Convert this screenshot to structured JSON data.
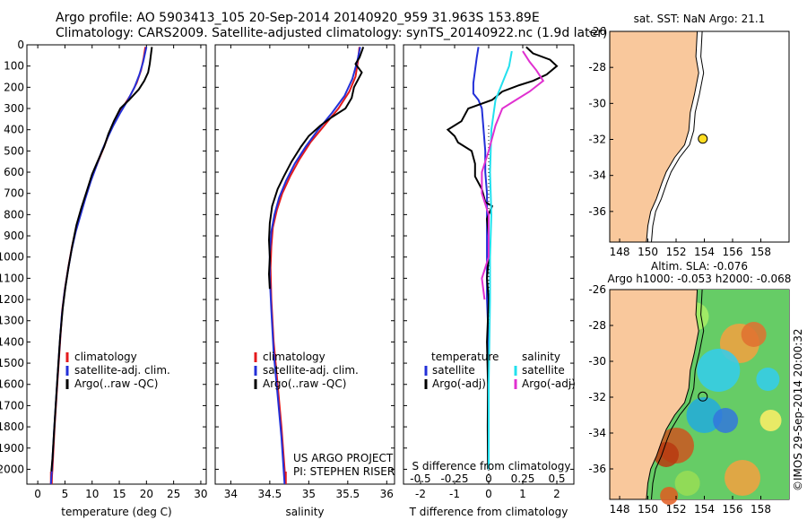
{
  "header": {
    "line1": "Argo profile: AO 5903413_105 20-Sep-2014 20140920_959 31.963S 153.89E",
    "line2": "Climatology: CARS2009. Satellite-adjusted climatology: synTS_20140922.nc (1.9d later)"
  },
  "colors": {
    "climatology": "#e41a1c",
    "satellite": "#2330d8",
    "argo": "#000000",
    "cyan": "#22e0ee",
    "magenta": "#e030d0",
    "land": "#f9c89c",
    "marker": "#ffdd22"
  },
  "chart_data": [
    {
      "type": "line",
      "xlabel": "temperature (deg C)",
      "ylabel": "",
      "xlim": [
        -2,
        31
      ],
      "ylim": [
        2070,
        0
      ],
      "xticks": [
        0,
        5,
        10,
        15,
        20,
        25,
        30
      ],
      "yticks": [
        0,
        100,
        200,
        300,
        400,
        500,
        600,
        700,
        800,
        900,
        1000,
        1100,
        1200,
        1300,
        1400,
        1500,
        1600,
        1700,
        1800,
        1900,
        2000
      ],
      "legend": [
        "climatology",
        "satellite-adj. clim.",
        "Argo(..raw -QC)"
      ],
      "series": [
        {
          "name": "climatology",
          "points": [
            [
              19.8,
              10
            ],
            [
              19.5,
              60
            ],
            [
              19.0,
              120
            ],
            [
              18.2,
              180
            ],
            [
              17.0,
              240
            ],
            [
              15.5,
              300
            ],
            [
              14.2,
              360
            ],
            [
              13.1,
              420
            ],
            [
              12.2,
              480
            ],
            [
              11.1,
              550
            ],
            [
              10.0,
              620
            ],
            [
              9.0,
              700
            ],
            [
              8.0,
              780
            ],
            [
              7.1,
              860
            ],
            [
              6.3,
              950
            ],
            [
              5.6,
              1050
            ],
            [
              5.0,
              1150
            ],
            [
              4.5,
              1250
            ],
            [
              4.1,
              1400
            ],
            [
              3.6,
              1600
            ],
            [
              3.1,
              1800
            ],
            [
              2.7,
              2000
            ],
            [
              2.5,
              2070
            ]
          ]
        },
        {
          "name": "satellite-adj. clim.",
          "points": [
            [
              20.0,
              10
            ],
            [
              19.4,
              80
            ],
            [
              18.7,
              140
            ],
            [
              17.8,
              200
            ],
            [
              16.6,
              260
            ],
            [
              15.2,
              320
            ],
            [
              13.9,
              380
            ],
            [
              12.8,
              440
            ],
            [
              11.8,
              500
            ],
            [
              10.8,
              570
            ],
            [
              9.8,
              640
            ],
            [
              8.8,
              720
            ],
            [
              7.9,
              800
            ],
            [
              7.0,
              880
            ],
            [
              6.2,
              970
            ],
            [
              5.5,
              1070
            ],
            [
              4.9,
              1170
            ],
            [
              4.4,
              1280
            ],
            [
              4.0,
              1420
            ],
            [
              3.5,
              1620
            ],
            [
              3.0,
              1820
            ],
            [
              2.6,
              2000
            ],
            [
              2.4,
              2070
            ]
          ]
        },
        {
          "name": "Argo(..raw -QC)",
          "points": [
            [
              21.0,
              10
            ],
            [
              20.8,
              50
            ],
            [
              20.6,
              90
            ],
            [
              20.3,
              130
            ],
            [
              19.6,
              170
            ],
            [
              18.6,
              210
            ],
            [
              16.8,
              260
            ],
            [
              15.2,
              300
            ],
            [
              14.0,
              360
            ],
            [
              13.0,
              420
            ],
            [
              12.2,
              480
            ],
            [
              11.0,
              550
            ],
            [
              10.0,
              610
            ],
            [
              9.0,
              690
            ],
            [
              8.0,
              770
            ],
            [
              7.1,
              850
            ],
            [
              6.4,
              940
            ],
            [
              5.7,
              1040
            ],
            [
              5.1,
              1140
            ],
            [
              4.6,
              1240
            ],
            [
              4.1,
              1380
            ],
            [
              3.6,
              1580
            ],
            [
              3.1,
              1780
            ],
            [
              2.7,
              1950
            ],
            [
              2.5,
              2010
            ]
          ]
        }
      ]
    },
    {
      "type": "line",
      "xlabel": "salinity",
      "xlim": [
        33.8,
        36.1
      ],
      "ylim": [
        2070,
        0
      ],
      "xticks": [
        34,
        34.5,
        35,
        35.5,
        36
      ],
      "legend": [
        "climatology",
        "satellite-adj. clim.",
        "Argo(..raw -QC)"
      ],
      "annotations": [
        "US ARGO PROJECT",
        "PI: STEPHEN RISER"
      ],
      "series": [
        {
          "name": "climatology",
          "points": [
            [
              35.65,
              10
            ],
            [
              35.63,
              80
            ],
            [
              35.6,
              150
            ],
            [
              35.52,
              220
            ],
            [
              35.38,
              300
            ],
            [
              35.2,
              380
            ],
            [
              35.02,
              460
            ],
            [
              34.88,
              540
            ],
            [
              34.76,
              620
            ],
            [
              34.66,
              700
            ],
            [
              34.59,
              780
            ],
            [
              34.54,
              860
            ],
            [
              34.52,
              950
            ],
            [
              34.51,
              1050
            ],
            [
              34.52,
              1200
            ],
            [
              34.55,
              1400
            ],
            [
              34.6,
              1600
            ],
            [
              34.65,
              1800
            ],
            [
              34.69,
              2000
            ],
            [
              34.7,
              2070
            ]
          ]
        },
        {
          "name": "satellite-adj. clim.",
          "points": [
            [
              35.66,
              10
            ],
            [
              35.62,
              80
            ],
            [
              35.56,
              160
            ],
            [
              35.46,
              240
            ],
            [
              35.3,
              320
            ],
            [
              35.12,
              400
            ],
            [
              34.96,
              480
            ],
            [
              34.82,
              560
            ],
            [
              34.71,
              640
            ],
            [
              34.62,
              720
            ],
            [
              34.56,
              800
            ],
            [
              34.52,
              880
            ],
            [
              34.5,
              980
            ],
            [
              34.5,
              1100
            ],
            [
              34.52,
              1250
            ],
            [
              34.55,
              1450
            ],
            [
              34.6,
              1650
            ],
            [
              34.65,
              1850
            ],
            [
              34.69,
              2070
            ]
          ]
        },
        {
          "name": "Argo(..raw -QC)",
          "points": [
            [
              35.7,
              10
            ],
            [
              35.65,
              60
            ],
            [
              35.6,
              90
            ],
            [
              35.68,
              130
            ],
            [
              35.58,
              200
            ],
            [
              35.55,
              250
            ],
            [
              35.47,
              300
            ],
            [
              35.3,
              340
            ],
            [
              35.15,
              380
            ],
            [
              35.0,
              430
            ],
            [
              34.9,
              480
            ],
            [
              34.78,
              550
            ],
            [
              34.68,
              620
            ],
            [
              34.6,
              680
            ],
            [
              34.53,
              760
            ],
            [
              34.5,
              840
            ],
            [
              34.49,
              920
            ],
            [
              34.5,
              1000
            ],
            [
              34.49,
              1080
            ],
            [
              34.5,
              1150
            ]
          ]
        }
      ]
    },
    {
      "type": "line",
      "xlabel": "T difference from climatology",
      "x2label": "S difference from climatology",
      "xlim": [
        -2.5,
        2.5
      ],
      "ylim": [
        2070,
        0
      ],
      "xticks": [
        -2,
        -1,
        0,
        1,
        2
      ],
      "x2ticks": [
        -0.5,
        -0.25,
        0,
        0.25,
        0.5
      ],
      "legend_left_title": "temperature",
      "legend_right_title": "salinity",
      "legend": [
        "satellite",
        "Argo(-adj)",
        "satellite",
        "Argo(-adj)"
      ],
      "series": [
        {
          "name": "satellite",
          "group": "temperature",
          "points": [
            [
              -0.3,
              10
            ],
            [
              -0.35,
              60
            ],
            [
              -0.4,
              120
            ],
            [
              -0.45,
              180
            ],
            [
              -0.45,
              230
            ],
            [
              -0.3,
              260
            ],
            [
              -0.2,
              300
            ],
            [
              -0.15,
              400
            ],
            [
              -0.1,
              500
            ],
            [
              -0.1,
              600
            ],
            [
              -0.05,
              700
            ],
            [
              -0.05,
              800
            ],
            [
              -0.05,
              1000
            ],
            [
              -0.05,
              1200
            ],
            [
              0.0,
              1400
            ],
            [
              0.0,
              1600
            ],
            [
              0.0,
              1800
            ],
            [
              0.0,
              2000
            ]
          ]
        },
        {
          "name": "Argo(-adj)",
          "group": "temperature",
          "points": [
            [
              1.1,
              10
            ],
            [
              1.3,
              40
            ],
            [
              1.8,
              70
            ],
            [
              2.0,
              100
            ],
            [
              1.7,
              140
            ],
            [
              1.3,
              170
            ],
            [
              0.9,
              190
            ],
            [
              0.4,
              220
            ],
            [
              0.1,
              260
            ],
            [
              -0.6,
              300
            ],
            [
              -0.8,
              360
            ],
            [
              -1.2,
              400
            ],
            [
              -1.0,
              430
            ],
            [
              -0.9,
              460
            ],
            [
              -0.5,
              500
            ],
            [
              -0.4,
              560
            ],
            [
              -0.4,
              620
            ],
            [
              -0.2,
              680
            ],
            [
              -0.1,
              740
            ],
            [
              0.1,
              760
            ],
            [
              -0.05,
              820
            ],
            [
              0.0,
              900
            ],
            [
              0.0,
              1000
            ],
            [
              -0.05,
              1100
            ],
            [
              0.0,
              1200
            ],
            [
              -0.05,
              1400
            ],
            [
              -0.02,
              1600
            ],
            [
              -0.03,
              1800
            ],
            [
              -0.02,
              2000
            ]
          ]
        },
        {
          "name": "satellite",
          "group": "salinity",
          "points": [
            [
              0.17,
              30
            ],
            [
              0.15,
              100
            ],
            [
              0.1,
              180
            ],
            [
              0.05,
              260
            ],
            [
              0.02,
              400
            ],
            [
              0.01,
              600
            ],
            [
              0.02,
              800
            ],
            [
              0.01,
              1000
            ],
            [
              0.01,
              1200
            ],
            [
              0.0,
              1600
            ],
            [
              0.0,
              2000
            ]
          ]
        },
        {
          "name": "Argo(-adj)",
          "group": "salinity",
          "points": [
            [
              0.25,
              30
            ],
            [
              0.3,
              80
            ],
            [
              0.35,
              120
            ],
            [
              0.4,
              170
            ],
            [
              0.3,
              220
            ],
            [
              0.2,
              260
            ],
            [
              0.1,
              300
            ],
            [
              0.05,
              380
            ],
            [
              0.0,
              500
            ],
            [
              -0.05,
              600
            ],
            [
              -0.05,
              700
            ],
            [
              0.0,
              800
            ],
            [
              0.0,
              1000
            ],
            [
              -0.05,
              1100
            ],
            [
              -0.03,
              1200
            ]
          ]
        }
      ]
    }
  ],
  "map_top": {
    "title": "sat. SST: NaN Argo: 21.1",
    "xticks": [
      148,
      150,
      152,
      154,
      156,
      158
    ],
    "yticks": [
      -26,
      -28,
      -30,
      -32,
      -34,
      -36
    ]
  },
  "map_bottom": {
    "title1": "Altim. SLA: -0.076",
    "title2": "Argo h1000: -0.053 h2000: -0.068",
    "xticks": [
      148,
      150,
      152,
      154,
      156,
      158
    ],
    "yticks": [
      -26,
      -28,
      -30,
      -32,
      -34,
      -36
    ]
  },
  "stamp": "©IMOS 29-Sep-2014 20:00:32"
}
